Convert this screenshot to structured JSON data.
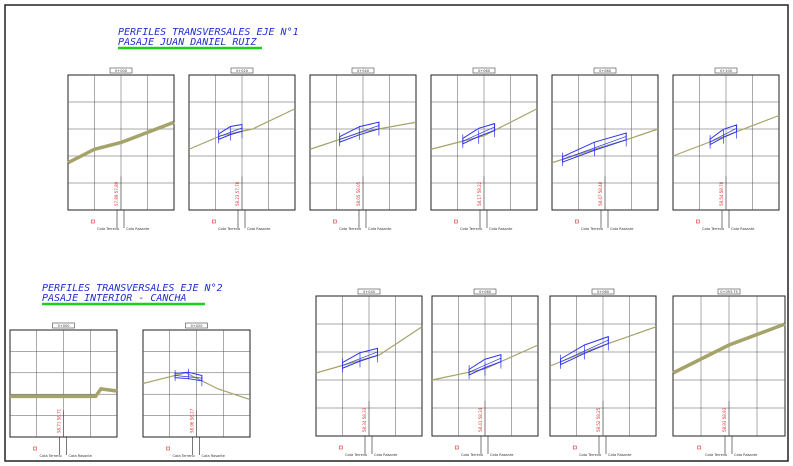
{
  "groups": [
    {
      "title": "PERFILES TRANSVERSALES EJE N°1",
      "subtitle": "PASAJE JUAN DANIEL RUIZ",
      "panels": [
        {
          "label": "0+000",
          "cota_text": "57.89  57.89",
          "with_section": false,
          "section": []
        },
        {
          "label": "0+020",
          "cota_text": "58.23  57.78",
          "with_section": true,
          "section": [
            [
              0.28,
              0.28
            ],
            [
              0.5,
              0.42
            ]
          ]
        },
        {
          "label": "0+040",
          "cota_text": "58.05  58.05",
          "with_section": true,
          "section": [
            [
              0.28,
              0.28
            ],
            [
              0.65,
              0.52
            ]
          ]
        },
        {
          "label": "0+060",
          "cota_text": "58.17  58.22",
          "with_section": true,
          "section": [
            [
              0.3,
              0.3
            ],
            [
              0.6,
              0.55
            ]
          ]
        },
        {
          "label": "0+080",
          "cota_text": "58.47  58.48",
          "with_section": true,
          "section": [
            [
              0.1,
              0.1
            ],
            [
              0.7,
              0.6
            ]
          ]
        },
        {
          "label": "0+100",
          "cota_text": "58.54  58.78",
          "with_section": true,
          "section": [
            [
              0.35,
              0.35
            ],
            [
              0.6,
              0.6
            ]
          ]
        }
      ]
    },
    {
      "title": "PERFILES TRANSVERSALES EJE N°2",
      "subtitle": "PASAJE INTERIOR - CANCHA",
      "panels": [
        {
          "label": "0+000",
          "cota_text": "58.71  58.71",
          "with_section": false,
          "section": []
        },
        {
          "label": "0+020",
          "cota_text": "58.96  58.27",
          "with_section": true,
          "section": [
            [
              0.3,
              0.3
            ],
            [
              0.55,
              0.55
            ]
          ]
        },
        {
          "label": "0+040",
          "cota_text": "58.34  58.33",
          "with_section": true,
          "section": [
            [
              0.25,
              0.25
            ],
            [
              0.58,
              0.58
            ]
          ]
        },
        {
          "label": "0+060",
          "cota_text": "58.41  58.34",
          "with_section": true,
          "section": [
            [
              0.35,
              0.35
            ],
            [
              0.65,
              0.65
            ]
          ]
        },
        {
          "label": "0+080",
          "cota_text": "58.52  58.25",
          "with_section": true,
          "section": [
            [
              0.1,
              0.1
            ],
            [
              0.55,
              0.55
            ]
          ]
        },
        {
          "label": "0+093.75",
          "cota_text": "58.93  58.93",
          "with_section": false,
          "section": []
        }
      ]
    }
  ],
  "legend": {
    "terrain_label": "Cota Terreno",
    "design_label": "Cota Rasante"
  },
  "colors": {
    "border": "#222222",
    "grid": "#555555",
    "terrain": "#a6a36a",
    "section": "#2b35e6",
    "label": "#e03030",
    "title": "#1f2fd0",
    "underline": "#1bd21b"
  }
}
